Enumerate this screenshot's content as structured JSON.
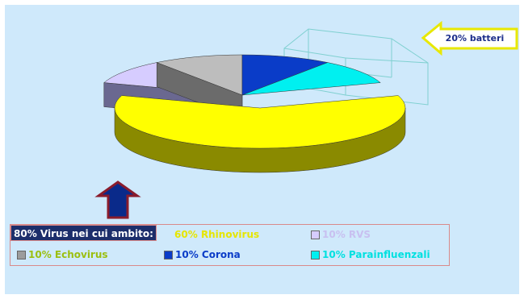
{
  "chart_data": {
    "type": "pie",
    "style": "3d-exploded",
    "slices": [
      {
        "label": "Rhinovirus",
        "value": 60,
        "color": "#ffff00",
        "side": "#8a8a00",
        "exploded": true
      },
      {
        "label": "RVS",
        "value": 10,
        "color": "#d6ccff",
        "side": "#6a6890"
      },
      {
        "label": "Echovirus",
        "value": 10,
        "color": "#bdbdbd",
        "side": "#6b6b6b"
      },
      {
        "label": "Corona",
        "value": 10,
        "color": "#0a3cc8",
        "side": "#07287f"
      },
      {
        "label": "Parainfluenzali",
        "value": 10,
        "color": "#00f0f0",
        "side": "#008a8a"
      }
    ],
    "callouts": {
      "bacteria": "20% batteri",
      "virus_group": "80% Virus nei cui ambito:"
    },
    "legend": {
      "placement": "bottom-left",
      "entries": [
        {
          "text": "60% Rhinovirus",
          "color": "#ffff00",
          "text_color": "#e6e600"
        },
        {
          "text": "10% RVS",
          "color": "#d6ccff",
          "text_color": "#c8c0f0"
        },
        {
          "text": "10% Echovirus",
          "color": "#9c9c9c",
          "text_color": "#9bbf10"
        },
        {
          "text": "10% Corona",
          "color": "#0a3cc8",
          "text_color": "#0a3cc8"
        },
        {
          "text": "10% Parainfluenzali",
          "color": "#00f0f0",
          "text_color": "#00e0e0"
        }
      ]
    }
  }
}
